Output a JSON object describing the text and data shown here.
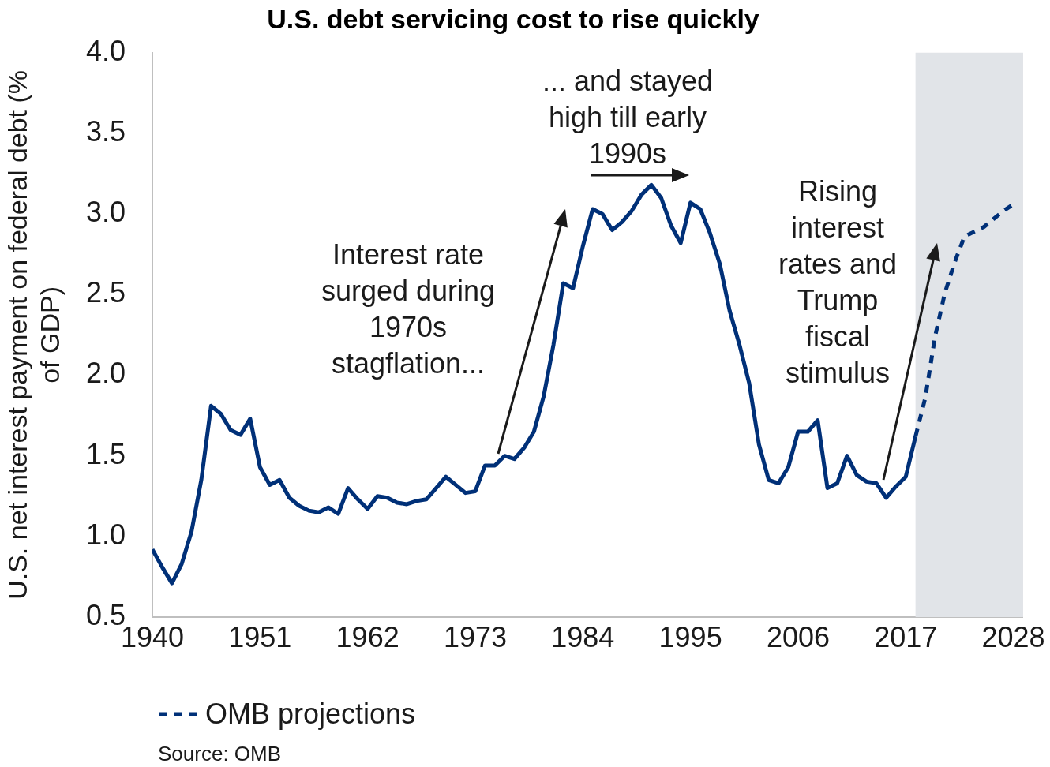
{
  "chart_data": {
    "type": "line",
    "title": "U.S. debt servicing cost to rise quickly",
    "ylabel": "U.S. net interest payment on federal debt (% of GDP)",
    "xlim": [
      1940,
      2029
    ],
    "xticks": [
      1940,
      1951,
      1962,
      1973,
      1984,
      1995,
      2006,
      2017,
      2028
    ],
    "ylim": [
      0.5,
      4
    ],
    "yticks": [
      0.5,
      {
        "value": 1,
        "label": "1.0"
      },
      1.5,
      {
        "value": 2,
        "label": "2.0"
      },
      2.5,
      {
        "value": 3,
        "label": "3.0"
      },
      3.5,
      {
        "value": 4,
        "label": "4.0"
      }
    ],
    "grid": false,
    "legend": "bottom",
    "series": [
      {
        "color": "#003078",
        "line_style": "solid",
        "x": [
          1940,
          1941,
          1942,
          1943,
          1944,
          1945,
          1946,
          1947,
          1948,
          1949,
          1950,
          1951,
          1952,
          1953,
          1954,
          1955,
          1956,
          1957,
          1958,
          1959,
          1960,
          1961,
          1962,
          1963,
          1964,
          1965,
          1966,
          1967,
          1968,
          1969,
          1970,
          1971,
          1972,
          1973,
          1974,
          1975,
          1976,
          1977,
          1978,
          1979,
          1980,
          1981,
          1982,
          1983,
          1984,
          1985,
          1986,
          1987,
          1988,
          1989,
          1990,
          1991,
          1992,
          1993,
          1994,
          1995,
          1996,
          1997,
          1998,
          1999,
          2000,
          2001,
          2002,
          2003,
          2004,
          2005,
          2006,
          2007,
          2008,
          2009,
          2010,
          2011,
          2012,
          2013,
          2014,
          2015,
          2016,
          2017,
          2018
        ],
        "values": [
          0.92,
          0.81,
          0.71,
          0.83,
          1.03,
          1.35,
          1.81,
          1.76,
          1.66,
          1.63,
          1.73,
          1.43,
          1.32,
          1.35,
          1.24,
          1.19,
          1.16,
          1.15,
          1.18,
          1.14,
          1.3,
          1.23,
          1.17,
          1.25,
          1.24,
          1.21,
          1.2,
          1.22,
          1.23,
          1.3,
          1.37,
          1.32,
          1.27,
          1.28,
          1.44,
          1.44,
          1.5,
          1.48,
          1.55,
          1.65,
          1.87,
          2.19,
          2.57,
          2.54,
          2.8,
          3.03,
          3.0,
          2.9,
          2.95,
          3.02,
          3.12,
          3.18,
          3.1,
          2.93,
          2.82,
          3.07,
          3.03,
          2.88,
          2.69,
          2.4,
          2.19,
          1.95,
          1.57,
          1.35,
          1.33,
          1.43,
          1.65,
          1.65,
          1.72,
          1.3,
          1.33,
          1.5,
          1.38,
          1.34,
          1.33,
          1.24,
          1.31,
          1.37,
          1.62
        ]
      },
      {
        "name": "OMB projections",
        "color": "#003078",
        "line_style": "dashed",
        "x": [
          2018,
          2019,
          2020,
          2021,
          2022,
          2023,
          2024,
          2025,
          2026,
          2027,
          2028
        ],
        "values": [
          1.62,
          1.86,
          2.24,
          2.51,
          2.7,
          2.86,
          2.89,
          2.92,
          2.97,
          3.02,
          3.06
        ]
      }
    ],
    "bands": [
      {
        "axis": "x",
        "from": 2018,
        "to": 2029,
        "color": "#e1e4e8"
      }
    ],
    "annotations": [
      "Interest rate surged during 1970s stagflation...",
      "... and stayed high till early 1990s",
      "Rising interest rates and Trump fiscal stimulus",
      "Source: OMB"
    ]
  }
}
